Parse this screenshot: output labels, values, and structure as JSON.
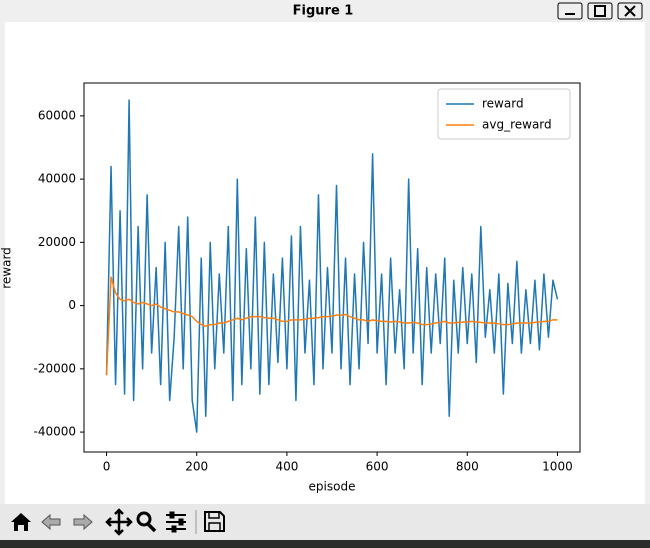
{
  "window": {
    "title": "Figure 1"
  },
  "chart_data": {
    "type": "line",
    "xlabel": "episode",
    "ylabel": "reward",
    "x": [
      0,
      10,
      20,
      30,
      40,
      50,
      60,
      70,
      80,
      90,
      100,
      110,
      120,
      130,
      140,
      150,
      160,
      170,
      180,
      190,
      200,
      210,
      220,
      230,
      240,
      250,
      260,
      270,
      280,
      290,
      300,
      310,
      320,
      330,
      340,
      350,
      360,
      370,
      380,
      390,
      400,
      410,
      420,
      430,
      440,
      450,
      460,
      470,
      480,
      490,
      500,
      510,
      520,
      530,
      540,
      550,
      560,
      570,
      580,
      590,
      600,
      610,
      620,
      630,
      640,
      650,
      660,
      670,
      680,
      690,
      700,
      710,
      720,
      730,
      740,
      750,
      760,
      770,
      780,
      790,
      800,
      810,
      820,
      830,
      840,
      850,
      860,
      870,
      880,
      890,
      900,
      910,
      920,
      930,
      940,
      950,
      960,
      970,
      980,
      990,
      1000
    ],
    "series": [
      {
        "name": "reward",
        "color": "#1f77b4",
        "values": [
          -22000,
          44000,
          -25000,
          30000,
          -28000,
          65000,
          -30000,
          25000,
          -20000,
          35000,
          -15000,
          12000,
          -25000,
          20000,
          -30000,
          -10000,
          25000,
          -20000,
          28000,
          -30000,
          -40000,
          15000,
          -35000,
          20000,
          -20000,
          10000,
          -15000,
          25000,
          -30000,
          40000,
          -25000,
          18000,
          -20000,
          28000,
          -28000,
          20000,
          -25000,
          10000,
          -18000,
          15000,
          -20000,
          22000,
          -30000,
          25000,
          -15000,
          8000,
          -25000,
          35000,
          -20000,
          12000,
          -15000,
          38000,
          -20000,
          15000,
          -25000,
          10000,
          -20000,
          20000,
          -12000,
          48000,
          -15000,
          10000,
          -25000,
          15000,
          -15000,
          5000,
          -20000,
          40000,
          -15000,
          18000,
          -25000,
          12000,
          -15000,
          10000,
          -12000,
          15000,
          -35000,
          8000,
          -15000,
          12000,
          -12000,
          10000,
          -18000,
          25000,
          -10000,
          5000,
          -15000,
          10000,
          -28000,
          7000,
          -12000,
          14000,
          -15000,
          5000,
          -12000,
          8000,
          -14000,
          10000,
          -10000,
          8000,
          2000
        ]
      },
      {
        "name": "avg_reward",
        "color": "#ff7f0e",
        "values": [
          -22000,
          9000,
          4000,
          2000,
          1500,
          2000,
          1000,
          500,
          1000,
          500,
          0,
          500,
          -500,
          -1000,
          -1500,
          -2000,
          -2000,
          -2500,
          -3000,
          -3500,
          -5000,
          -6000,
          -6500,
          -6000,
          -6000,
          -5500,
          -5500,
          -5000,
          -4500,
          -4000,
          -4500,
          -4000,
          -3500,
          -3500,
          -3500,
          -3800,
          -4000,
          -4000,
          -4500,
          -5000,
          -5000,
          -4500,
          -4500,
          -4500,
          -4300,
          -4000,
          -4000,
          -3800,
          -3500,
          -3500,
          -3300,
          -3000,
          -3000,
          -2800,
          -3500,
          -4000,
          -4500,
          -4500,
          -5000,
          -4500,
          -4800,
          -5000,
          -5000,
          -5200,
          -5000,
          -5200,
          -5500,
          -5500,
          -5300,
          -5500,
          -6000,
          -6000,
          -5800,
          -5500,
          -5300,
          -5000,
          -5500,
          -5500,
          -5300,
          -5200,
          -5200,
          -5000,
          -5200,
          -5300,
          -5500,
          -5500,
          -5500,
          -5800,
          -6000,
          -6000,
          -5800,
          -5500,
          -5500,
          -5500,
          -5500,
          -5300,
          -5200,
          -5000,
          -5000,
          -4500,
          -4500
        ]
      }
    ],
    "xlim": [
      -50,
      1050
    ],
    "ylim": [
      -46300,
      70400
    ],
    "xticks": [
      0,
      200,
      400,
      600,
      800,
      1000
    ],
    "yticks": [
      -40000,
      -20000,
      0,
      20000,
      40000,
      60000
    ],
    "legend": "upper right",
    "grid": false
  }
}
